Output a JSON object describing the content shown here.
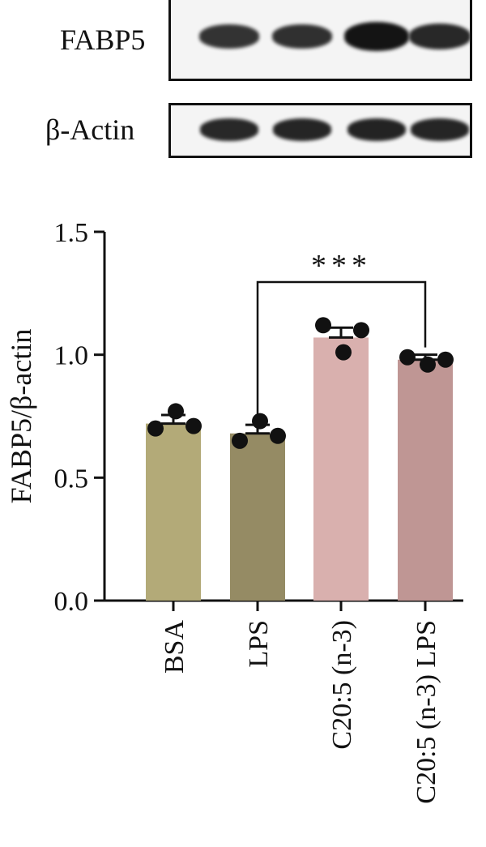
{
  "blots": {
    "fabp5_label": "FABP5",
    "actin_label": "β-Actin",
    "fabp5_band_intensity": [
      0.7,
      0.72,
      1.0,
      0.8
    ],
    "actin_band_intensity": [
      0.8,
      0.82,
      0.85,
      0.82
    ]
  },
  "chart_data": {
    "type": "bar",
    "categories": [
      "BSA",
      "LPS",
      "C20:5 (n-3)",
      "C20:5 (n-3) LPS"
    ],
    "values": [
      0.72,
      0.68,
      1.07,
      0.98
    ],
    "errors": [
      0.035,
      0.035,
      0.04,
      0.02
    ],
    "points": [
      [
        0.7,
        0.77,
        0.71
      ],
      [
        0.65,
        0.73,
        0.67
      ],
      [
        1.12,
        1.01,
        1.1
      ],
      [
        0.99,
        0.96,
        0.98
      ]
    ],
    "bar_colors": [
      "#b3aa78",
      "#958b64",
      "#d9b0ae",
      "#bf9694"
    ],
    "ylabel": "FABP5/β-actin",
    "ylim": [
      0,
      1.5
    ],
    "yticks": [
      0.0,
      0.5,
      1.0,
      1.5
    ],
    "ytick_labels": [
      "0.0",
      "0.5",
      "1.0",
      "1.5"
    ],
    "significance": {
      "between": [
        1,
        3
      ],
      "label": "***"
    }
  }
}
